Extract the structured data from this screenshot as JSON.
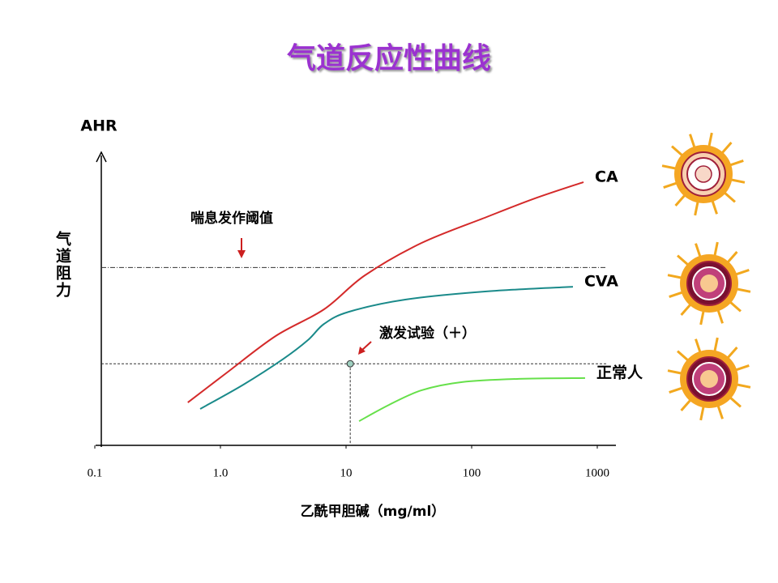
{
  "chart_data": {
    "type": "line",
    "title": "气道反应性曲线",
    "y_axis_title": "AHR",
    "y_axis_label": "气道阻力",
    "x_axis_label": "乙酰甲胆碱（mg/ml）",
    "xscale": "log",
    "xlim": [
      0.1,
      1000
    ],
    "xticks": [
      0.1,
      {
        "value": 1,
        "label": "1.0"
      },
      10,
      100,
      1000
    ],
    "ylim": [
      0,
      100
    ],
    "threshold": {
      "value": 61,
      "label": "喘息发作阈值"
    },
    "test_point": {
      "x": 10.8,
      "y": 28,
      "label": "激发试验（＋）"
    },
    "series": [
      {
        "name": "CA",
        "color": "#d42a2a",
        "x": [
          0.55,
          1.13,
          2.75,
          6.7,
          14.1,
          39.8,
          131,
          318,
          777
        ],
        "values": [
          14.7,
          25,
          37.5,
          46.7,
          58.3,
          69.4,
          78.3,
          84.7,
          90.3
        ]
      },
      {
        "name": "CVA",
        "color": "#1a8a8a",
        "x": [
          0.69,
          1.52,
          3.18,
          4.97,
          6.7,
          10.5,
          29.6,
          131,
          640
        ],
        "values": [
          12.5,
          20.8,
          29.7,
          36.1,
          41.7,
          45.8,
          50,
          52.8,
          54.4
        ]
      },
      {
        "name": "正常人",
        "color": "#66e04a",
        "x": [
          12.7,
          22,
          40,
          83.7,
          237,
          800
        ],
        "values": [
          8.3,
          13.9,
          18.9,
          21.7,
          22.8,
          23.1
        ]
      }
    ]
  }
}
